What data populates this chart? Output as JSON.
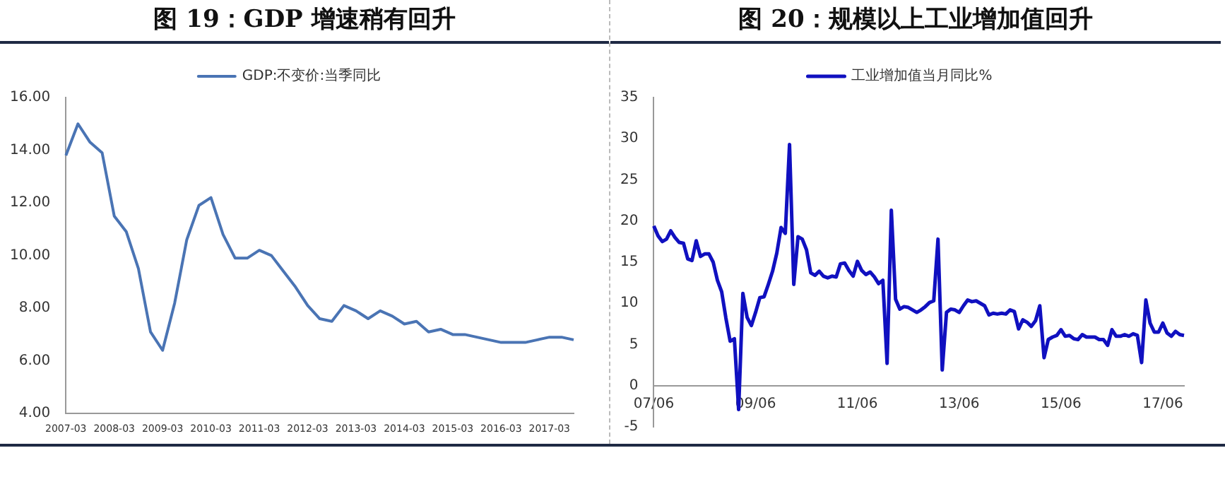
{
  "chart_data": [
    {
      "type": "line",
      "title": "图 19：GDP 增速稍有回升",
      "categories": [
        "2007-03",
        null,
        null,
        null,
        "2008-03",
        null,
        null,
        null,
        "2009-03",
        null,
        null,
        null,
        "2010-03",
        null,
        null,
        null,
        "2011-03",
        null,
        null,
        null,
        "2012-03",
        null,
        null,
        null,
        "2013-03",
        null,
        null,
        null,
        "2014-03",
        null,
        null,
        null,
        "2015-03",
        null,
        null,
        null,
        "2016-03",
        null,
        null,
        null,
        "2017-03",
        null,
        null
      ],
      "series": [
        {
          "name": "GDP:不变价:当季同比",
          "color": "#4a74b4",
          "values": [
            13.8,
            15.0,
            14.3,
            13.9,
            11.5,
            10.9,
            9.5,
            7.1,
            6.4,
            8.2,
            10.6,
            11.9,
            12.2,
            10.8,
            9.9,
            9.9,
            10.2,
            10.0,
            9.4,
            8.8,
            8.1,
            7.6,
            7.5,
            8.1,
            7.9,
            7.6,
            7.9,
            7.7,
            7.4,
            7.5,
            7.1,
            7.2,
            7.0,
            7.0,
            6.9,
            6.8,
            6.7,
            6.7,
            6.7,
            6.8,
            6.9,
            6.9,
            6.8
          ]
        }
      ],
      "ylim": [
        4,
        16
      ],
      "yticks": [
        {
          "value": 4,
          "label": "4.00"
        },
        {
          "value": 6,
          "label": "6.00"
        },
        {
          "value": 8,
          "label": "8.00"
        },
        {
          "value": 10,
          "label": "10.00"
        },
        {
          "value": 12,
          "label": "12.00"
        },
        {
          "value": 14,
          "label": "14.00"
        },
        {
          "value": 16,
          "label": "16.00"
        }
      ],
      "grid": false,
      "legend": "top",
      "marker": "none"
    },
    {
      "type": "line",
      "title": "图 20：规模以上工业增加值回升",
      "categories": [
        "07/06",
        null,
        null,
        null,
        null,
        null,
        null,
        null,
        null,
        null,
        null,
        null,
        null,
        null,
        null,
        null,
        null,
        null,
        null,
        null,
        null,
        null,
        null,
        null,
        "09/06",
        null,
        null,
        null,
        null,
        null,
        null,
        null,
        null,
        null,
        null,
        null,
        null,
        null,
        null,
        null,
        null,
        null,
        null,
        null,
        null,
        null,
        null,
        null,
        "11/06",
        null,
        null,
        null,
        null,
        null,
        null,
        null,
        null,
        null,
        null,
        null,
        null,
        null,
        null,
        null,
        null,
        null,
        null,
        null,
        null,
        null,
        null,
        null,
        "13/06",
        null,
        null,
        null,
        null,
        null,
        null,
        null,
        null,
        null,
        null,
        null,
        null,
        null,
        null,
        null,
        null,
        null,
        null,
        null,
        null,
        null,
        null,
        null,
        "15/06",
        null,
        null,
        null,
        null,
        null,
        null,
        null,
        null,
        null,
        null,
        null,
        null,
        null,
        null,
        null,
        null,
        null,
        null,
        null,
        null,
        null,
        null,
        null,
        "17/06",
        null,
        null,
        null,
        null,
        null
      ],
      "series": [
        {
          "name": "工业增加值当月同比%",
          "color": "#1010c0",
          "values": [
            19.4,
            18.2,
            17.5,
            17.8,
            18.8,
            18.0,
            17.4,
            17.3,
            15.4,
            15.2,
            17.6,
            15.7,
            16.0,
            16.0,
            15.0,
            12.8,
            11.4,
            8.2,
            5.4,
            5.7,
            -2.9,
            11.2,
            8.3,
            7.3,
            8.9,
            10.7,
            10.8,
            12.3,
            13.9,
            16.1,
            19.2,
            18.5,
            29.3,
            12.3,
            18.1,
            17.8,
            16.5,
            13.7,
            13.4,
            13.9,
            13.3,
            13.1,
            13.3,
            13.2,
            14.8,
            14.9,
            14.0,
            13.3,
            15.1,
            14.0,
            13.5,
            13.8,
            13.2,
            12.4,
            12.8,
            2.7,
            21.3,
            10.5,
            9.3,
            9.6,
            9.5,
            9.2,
            8.9,
            9.2,
            9.6,
            10.1,
            10.3,
            17.8,
            1.9,
            8.9,
            9.3,
            9.2,
            8.9,
            9.7,
            10.4,
            10.2,
            10.3,
            10.0,
            9.7,
            8.6,
            8.8,
            8.7,
            8.8,
            8.7,
            9.2,
            9.0,
            6.9,
            8.0,
            7.7,
            7.2,
            7.9,
            9.7,
            3.4,
            5.6,
            5.9,
            6.1,
            6.8,
            6.0,
            6.1,
            5.7,
            5.6,
            6.2,
            5.9,
            5.9,
            5.9,
            5.6,
            5.6,
            4.9,
            6.8,
            6.0,
            6.0,
            6.2,
            6.0,
            6.3,
            6.1,
            2.8,
            10.4,
            7.6,
            6.5,
            6.5,
            7.6,
            6.4,
            6.0,
            6.6,
            6.2,
            6.1
          ]
        }
      ],
      "ylim": [
        -5,
        35
      ],
      "yticks": [
        -5,
        0,
        5,
        10,
        15,
        20,
        25,
        30,
        35
      ],
      "grid": false,
      "legend": "top",
      "marker": "none"
    }
  ]
}
